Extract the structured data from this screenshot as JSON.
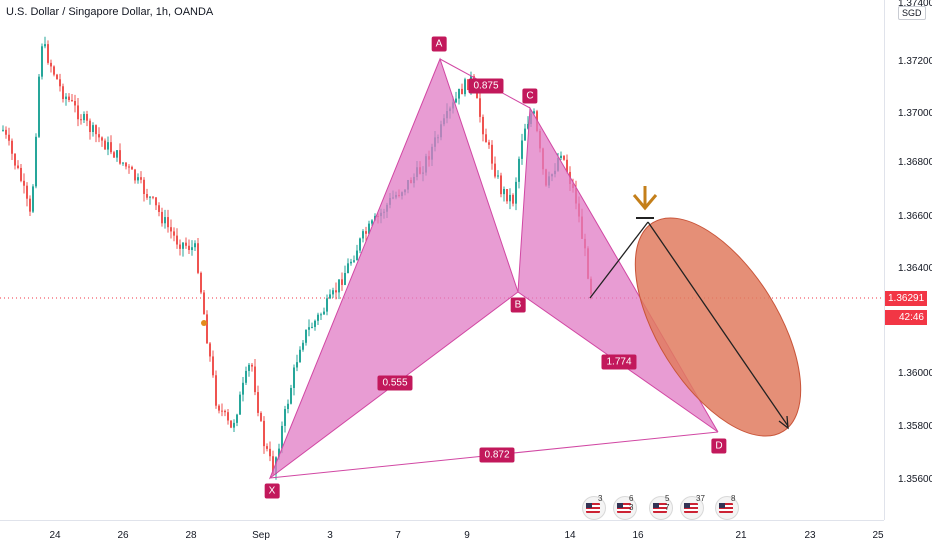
{
  "header": {
    "title": "U.S. Dollar / Singapore Dollar, 1h, OANDA"
  },
  "price_axis": {
    "currency": "SGD",
    "ticks": [
      "1.37200",
      "1.37000",
      "1.36800",
      "1.36600",
      "1.36400",
      "1.36000",
      "1.35800",
      "1.35600"
    ],
    "top_partial": "1.37400",
    "current_price": "1.36291",
    "countdown": "42:46"
  },
  "time_axis": {
    "ticks": [
      "24",
      "26",
      "28",
      "Sep",
      "3",
      "5",
      "7",
      "9",
      "14",
      "16",
      "21",
      "23",
      "25"
    ]
  },
  "pattern": {
    "points": {
      "X": "X",
      "A": "A",
      "B": "B",
      "C": "C",
      "D": "D"
    },
    "ratios": {
      "xb": "0.555",
      "ac": "0.875",
      "bd": "1.774",
      "xd": "0.872"
    }
  },
  "events": [
    {
      "count": "3"
    },
    {
      "count": "6 3"
    },
    {
      "count": "5 7"
    },
    {
      "count": "37"
    },
    {
      "count": "8"
    }
  ],
  "colors": {
    "pattern_fill": "#e07bc4",
    "pattern_line": "#d147a3",
    "label_bg": "#c2185b",
    "ellipse_fill": "#e07b5f",
    "arrow_marker": "#c47f1a",
    "up_candle": "#26a69a",
    "down_candle": "#ef5350",
    "price_tag": "#f23645"
  }
}
